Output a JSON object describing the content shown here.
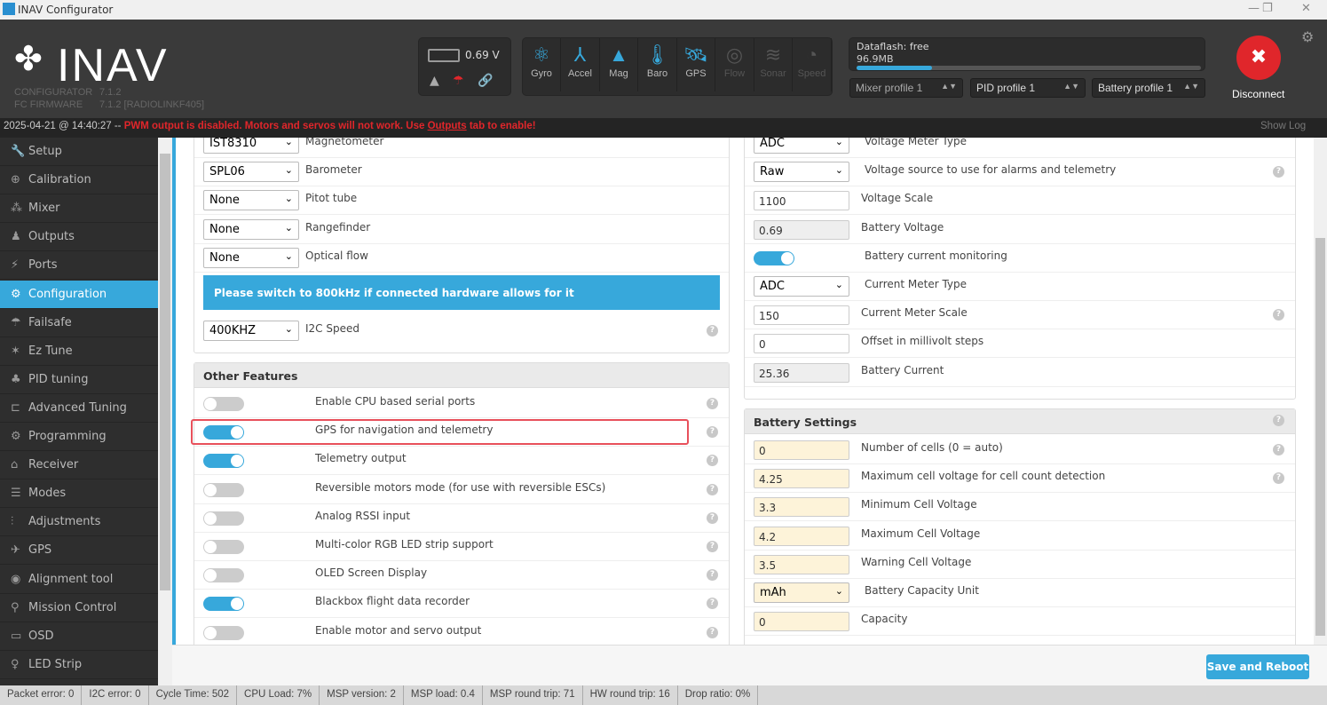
{
  "window": {
    "title": "INAV Configurator",
    "minimize": "—",
    "maximize": "❐",
    "close": "✕"
  },
  "header": {
    "logo": "INAV",
    "configurator_label": "CONFIGURATOR",
    "configurator_version": "7.1.2",
    "firmware_label": "FC FIRMWARE",
    "firmware_version": "7.1.2 [RADIOLINKF405]",
    "battery_voltage": "0.69 V",
    "sensors": [
      {
        "label": "Gyro",
        "icon": "atom-icon",
        "glyph": "⚛",
        "active": true
      },
      {
        "label": "Accel",
        "icon": "axes-icon",
        "glyph": "⅄",
        "active": true
      },
      {
        "label": "Mag",
        "icon": "compass-icon",
        "glyph": "▲",
        "active": true
      },
      {
        "label": "Baro",
        "icon": "thermometer-icon",
        "glyph": "🌡",
        "active": true
      },
      {
        "label": "GPS",
        "icon": "satellite-icon",
        "glyph": "🛰",
        "active": true
      },
      {
        "label": "Flow",
        "icon": "flow-icon",
        "glyph": "◎",
        "active": false
      },
      {
        "label": "Sonar",
        "icon": "sonar-icon",
        "glyph": "≋",
        "active": false
      },
      {
        "label": "Speed",
        "icon": "speedometer-icon",
        "glyph": "◔",
        "active": false
      }
    ],
    "dataflash_label": "Dataflash: free",
    "dataflash_size": "96.9MB",
    "dataflash_free_percent": 22,
    "mixer_profile": "Mixer profile 1",
    "pid_profile": "PID profile 1",
    "battery_profile": "Battery profile 1",
    "disconnect": "Disconnect",
    "accent": "#37a8db"
  },
  "log": {
    "timestamp": "2025-04-21 @ 14:40:27 --",
    "msg_a": "PWM output is disabled. Motors and servos will not work. Use ",
    "msg_link": "Outputs",
    "msg_b": " tab to enable!",
    "show_log": "Show Log"
  },
  "sidebar": {
    "items": [
      {
        "label": "Setup",
        "icon": "wrench-icon",
        "g": "🔧"
      },
      {
        "label": "Calibration",
        "icon": "crosshair-icon",
        "g": "⊕"
      },
      {
        "label": "Mixer",
        "icon": "mixer-icon",
        "g": "⁂"
      },
      {
        "label": "Outputs",
        "icon": "motor-icon",
        "g": "♟"
      },
      {
        "label": "Ports",
        "icon": "plug-icon",
        "g": "⚡"
      },
      {
        "label": "Configuration",
        "icon": "gear-icon",
        "g": "⚙",
        "active": true
      },
      {
        "label": "Failsafe",
        "icon": "parachute-icon",
        "g": "☂"
      },
      {
        "label": "Ez Tune",
        "icon": "wand-icon",
        "g": "✶"
      },
      {
        "label": "PID tuning",
        "icon": "hierarchy-icon",
        "g": "♣"
      },
      {
        "label": "Advanced Tuning",
        "icon": "nodes-icon",
        "g": "⊏"
      },
      {
        "label": "Programming",
        "icon": "cog-icon",
        "g": "⚙"
      },
      {
        "label": "Receiver",
        "icon": "radio-icon",
        "g": "⌂"
      },
      {
        "label": "Modes",
        "icon": "switches-icon",
        "g": "☰"
      },
      {
        "label": "Adjustments",
        "icon": "sliders-icon",
        "g": "⫶"
      },
      {
        "label": "GPS",
        "icon": "satellite-icon",
        "g": "✈"
      },
      {
        "label": "Alignment tool",
        "icon": "compass-icon",
        "g": "◉"
      },
      {
        "label": "Mission Control",
        "icon": "map-marker-icon",
        "g": "⚲"
      },
      {
        "label": "OSD",
        "icon": "osd-icon",
        "g": "▭"
      },
      {
        "label": "LED Strip",
        "icon": "led-icon",
        "g": "♀"
      }
    ]
  },
  "sensors_panel": {
    "rows": [
      {
        "type": "select",
        "value": "IST8310",
        "label": "Magnetometer"
      },
      {
        "type": "select",
        "value": "SPL06",
        "label": "Barometer"
      },
      {
        "type": "select",
        "value": "None",
        "label": "Pitot tube"
      },
      {
        "type": "select",
        "value": "None",
        "label": "Rangefinder"
      },
      {
        "type": "select",
        "value": "None",
        "label": "Optical flow"
      }
    ],
    "notice": "Please switch to 800kHz if connected hardware allows for it",
    "i2c_value": "400KHZ",
    "i2c_label": "I2C Speed"
  },
  "features": {
    "title": "Other Features",
    "rows": [
      {
        "label": "Enable CPU based serial ports",
        "on": false
      },
      {
        "label": "GPS for navigation and telemetry",
        "on": true,
        "highlighted": true
      },
      {
        "label": "Telemetry output",
        "on": true
      },
      {
        "label": "Reversible motors mode (for use with reversible ESCs)",
        "on": false
      },
      {
        "label": "Analog RSSI input",
        "on": false
      },
      {
        "label": "Multi-color RGB LED strip support",
        "on": false
      },
      {
        "label": "OLED Screen Display",
        "on": false
      },
      {
        "label": "Blackbox flight data recorder",
        "on": true
      },
      {
        "label": "Enable motor and servo output",
        "on": false
      }
    ]
  },
  "battery_panel": {
    "rows": [
      {
        "type": "select",
        "value": "ADC",
        "label": "Voltage Meter Type"
      },
      {
        "type": "select",
        "value": "Raw",
        "label": "Voltage source to use for alarms and telemetry",
        "help": true
      },
      {
        "type": "input",
        "value": "1100",
        "label": "Voltage Scale"
      },
      {
        "type": "ro",
        "value": "0.69",
        "label": "Battery Voltage"
      },
      {
        "type": "toggle",
        "on": true,
        "label": "Battery current monitoring"
      },
      {
        "type": "select",
        "value": "ADC",
        "label": "Current Meter Type"
      },
      {
        "type": "input",
        "value": "150",
        "label": "Current Meter Scale",
        "help": true
      },
      {
        "type": "input",
        "value": "0",
        "label": "Offset in millivolt steps"
      },
      {
        "type": "ro",
        "value": "25.36",
        "label": "Battery Current"
      }
    ]
  },
  "battery_settings": {
    "title": "Battery Settings",
    "rows": [
      {
        "type": "warm",
        "value": "0",
        "label": "Number of cells (0 = auto)",
        "help": true
      },
      {
        "type": "warm",
        "value": "4.25",
        "label": "Maximum cell voltage for cell count detection",
        "help": true
      },
      {
        "type": "warm",
        "value": "3.3",
        "label": "Minimum Cell Voltage"
      },
      {
        "type": "warm",
        "value": "4.2",
        "label": "Maximum Cell Voltage"
      },
      {
        "type": "warm",
        "value": "3.5",
        "label": "Warning Cell Voltage"
      },
      {
        "type": "selectwarm",
        "value": "mAh",
        "label": "Battery Capacity Unit"
      },
      {
        "type": "warm",
        "value": "0",
        "label": "Capacity"
      }
    ]
  },
  "save_button": "Save and Reboot",
  "status": [
    "Packet error: 0",
    "I2C error: 0",
    "Cycle Time: 502",
    "CPU Load: 7%",
    "MSP version: 2",
    "MSP load: 0.4",
    "MSP round trip: 71",
    "HW round trip: 16",
    "Drop ratio: 0%"
  ]
}
